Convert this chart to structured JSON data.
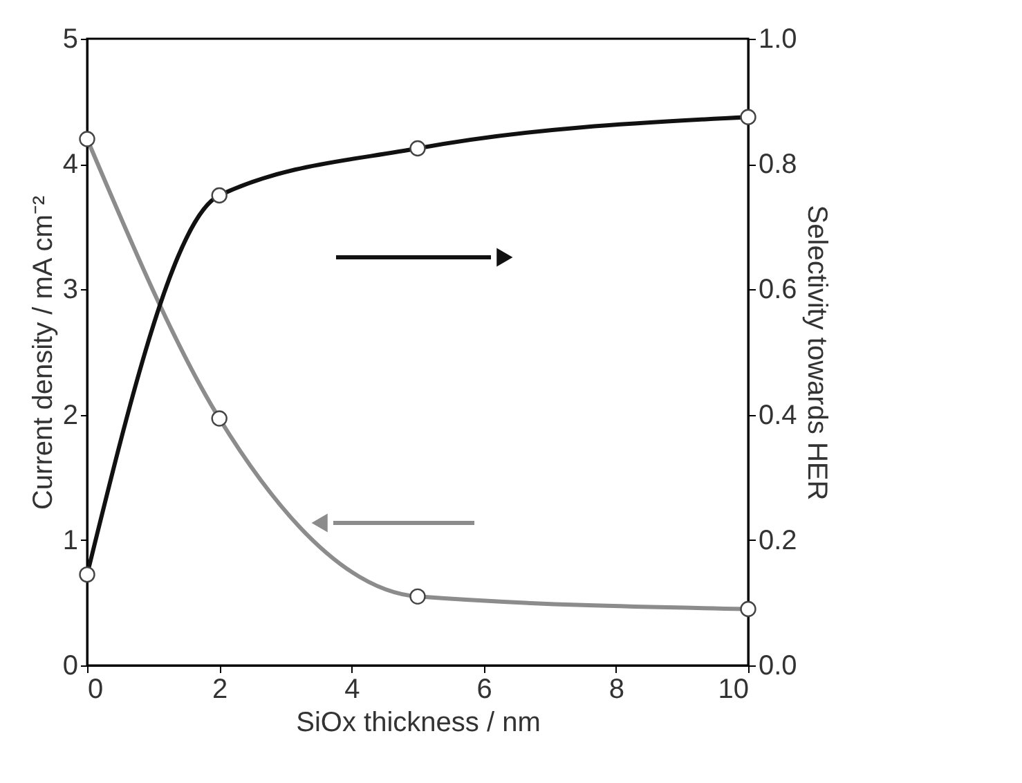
{
  "chart_data": {
    "type": "line",
    "xlabel": "SiOx thickness / nm",
    "ylabel": "Current density / mA cm⁻²",
    "y2label": "Selectivity towards HER",
    "x": [
      0,
      2,
      5,
      10
    ],
    "series": [
      {
        "color": "#8c8c8c",
        "values": [
          4.2,
          1.97,
          0.55,
          0.45
        ]
      },
      {
        "color": "#111111",
        "values": [
          0.145,
          0.75,
          0.825,
          0.875
        ],
        "axis": "y2"
      }
    ],
    "xlim": [
      0,
      10
    ],
    "xticks": [
      0,
      2,
      4,
      6,
      8,
      10
    ],
    "ylim": [
      0,
      5
    ],
    "yticks": [
      0,
      1,
      2,
      3,
      4,
      5
    ],
    "y2lim": [
      0,
      1
    ],
    "y2ticks": [
      {
        "value": 0,
        "label": "0.0"
      },
      {
        "value": 0.2,
        "label": "0.2"
      },
      {
        "value": 0.4,
        "label": "0.4"
      },
      {
        "value": 0.6,
        "label": "0.6"
      },
      {
        "value": 0.8,
        "label": "0.8"
      },
      {
        "value": 1,
        "label": "1.0"
      }
    ],
    "marker": "circle",
    "grid": false
  }
}
